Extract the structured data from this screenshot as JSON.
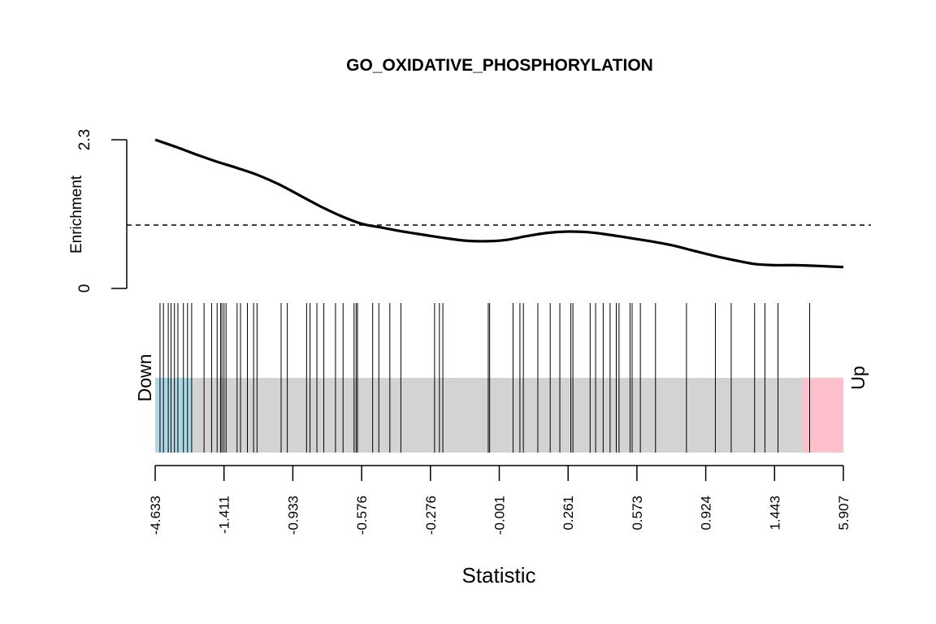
{
  "chart_data": {
    "type": "line",
    "title": "GO_OXIDATIVE_PHOSPHORYLATION",
    "ylabel": "Enrichment",
    "xlabel": "Statistic",
    "ylim": [
      0,
      2.3
    ],
    "y_ticks": [
      "0",
      "2.3"
    ],
    "reference_line_y": 0.98,
    "x_tick_labels": [
      "-4.633",
      "-1.411",
      "-0.933",
      "-0.576",
      "-0.276",
      "-0.001",
      "0.261",
      "0.573",
      "0.924",
      "1.443",
      "5.907"
    ],
    "x_tick_positions": [
      0,
      0.1,
      0.2,
      0.3,
      0.4,
      0.5,
      0.6,
      0.7,
      0.8,
      0.9,
      1.0
    ],
    "enrichment_curve": {
      "x": [
        0,
        0.03,
        0.06,
        0.09,
        0.12,
        0.15,
        0.18,
        0.21,
        0.24,
        0.27,
        0.3,
        0.33,
        0.36,
        0.39,
        0.42,
        0.45,
        0.48,
        0.51,
        0.54,
        0.57,
        0.6,
        0.63,
        0.66,
        0.69,
        0.72,
        0.75,
        0.78,
        0.81,
        0.84,
        0.87,
        0.9,
        0.93,
        0.96,
        1.0
      ],
      "y": [
        2.3,
        2.19,
        2.07,
        1.96,
        1.86,
        1.75,
        1.61,
        1.44,
        1.27,
        1.12,
        1.0,
        0.94,
        0.88,
        0.83,
        0.78,
        0.74,
        0.73,
        0.75,
        0.81,
        0.86,
        0.88,
        0.87,
        0.83,
        0.78,
        0.73,
        0.67,
        0.59,
        0.51,
        0.44,
        0.38,
        0.36,
        0.36,
        0.35,
        0.33
      ]
    },
    "barcode_positions": [
      0.007,
      0.012,
      0.019,
      0.023,
      0.028,
      0.033,
      0.041,
      0.047,
      0.053,
      0.071,
      0.082,
      0.09,
      0.095,
      0.097,
      0.1,
      0.103,
      0.119,
      0.124,
      0.134,
      0.143,
      0.148,
      0.183,
      0.192,
      0.22,
      0.225,
      0.235,
      0.245,
      0.262,
      0.273,
      0.289,
      0.292,
      0.294,
      0.316,
      0.325,
      0.341,
      0.357,
      0.406,
      0.413,
      0.418,
      0.484,
      0.486,
      0.52,
      0.53,
      0.535,
      0.556,
      0.574,
      0.588,
      0.604,
      0.607,
      0.632,
      0.64,
      0.651,
      0.661,
      0.67,
      0.674,
      0.69,
      0.693,
      0.705,
      0.727,
      0.772,
      0.814,
      0.837,
      0.871,
      0.886,
      0.905,
      0.951
    ],
    "down_label": "Down",
    "up_label": "Up",
    "colors": {
      "down_region": "#add8e6",
      "up_region": "#ffc0cb",
      "middle_region": "#d3d3d3",
      "curve": "#000000"
    },
    "down_region_end": 0.053,
    "up_region_start": 0.94
  }
}
